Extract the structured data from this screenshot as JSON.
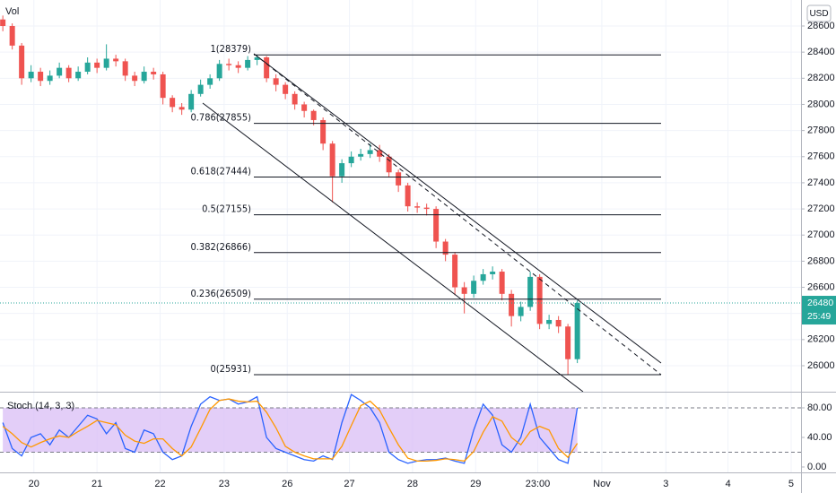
{
  "chart_data": {
    "type": "candlestick",
    "volume_label": "Vol",
    "currency": "USD",
    "x": [
      0,
      1,
      2,
      3,
      4,
      5,
      6,
      7,
      8,
      9,
      10,
      11,
      12,
      13,
      14,
      15,
      16,
      17,
      18,
      19,
      20,
      21,
      22,
      23,
      24,
      25,
      26,
      27,
      28,
      29,
      30,
      31,
      32,
      33,
      34,
      35,
      36,
      37,
      38,
      39,
      40,
      41,
      42,
      43,
      44,
      45,
      46,
      47,
      48,
      49,
      50,
      51,
      52,
      53,
      54,
      55,
      56,
      57,
      58,
      59,
      60,
      61
    ],
    "open": [
      28650,
      28600,
      28450,
      28200,
      28250,
      28180,
      28220,
      28280,
      28200,
      28250,
      28320,
      28280,
      28350,
      28330,
      28220,
      28180,
      28250,
      28230,
      28050,
      27980,
      27960,
      28080,
      28150,
      28200,
      28310,
      28300,
      28280,
      28340,
      28360,
      28200,
      28150,
      28080,
      28000,
      27950,
      27880,
      27700,
      27450,
      27550,
      27600,
      27620,
      27650,
      27600,
      27480,
      27380,
      27220,
      27210,
      27200,
      26950,
      26850,
      26600,
      26550,
      26650,
      26700,
      26720,
      26550,
      26380,
      26450,
      26680,
      26320,
      26350,
      26300,
      26050
    ],
    "high": [
      28680,
      28620,
      28470,
      28300,
      28280,
      28260,
      28320,
      28300,
      28290,
      28360,
      28350,
      28460,
      28380,
      28350,
      28250,
      28290,
      28280,
      28250,
      28070,
      28010,
      28110,
      28190,
      28230,
      28340,
      28350,
      28330,
      28370,
      28379,
      28370,
      28230,
      28170,
      28100,
      28020,
      27960,
      27900,
      27720,
      27580,
      27640,
      27660,
      27700,
      27690,
      27620,
      27500,
      27400,
      27250,
      27240,
      27220,
      26970,
      26870,
      26640,
      26690,
      26740,
      26760,
      26740,
      26580,
      26490,
      26720,
      26700,
      26390,
      26380,
      26320,
      26500
    ],
    "low": [
      28560,
      28420,
      28150,
      28170,
      28140,
      28150,
      28200,
      28170,
      28180,
      28230,
      28240,
      28260,
      28290,
      28180,
      28140,
      28160,
      28190,
      28000,
      27940,
      27920,
      27940,
      28060,
      28120,
      28180,
      28260,
      28240,
      28260,
      28300,
      28170,
      28100,
      28040,
      27960,
      27900,
      27840,
      27650,
      27250,
      27400,
      27520,
      27570,
      27590,
      27560,
      27440,
      27330,
      27180,
      27170,
      27150,
      26900,
      26800,
      26540,
      26400,
      26520,
      26620,
      26660,
      26500,
      26300,
      26340,
      26420,
      26280,
      26280,
      26250,
      25931,
      26020
    ],
    "close": [
      28600,
      28450,
      28200,
      28250,
      28180,
      28220,
      28280,
      28200,
      28250,
      28320,
      28280,
      28350,
      28330,
      28220,
      28180,
      28250,
      28230,
      28050,
      27980,
      27960,
      28080,
      28150,
      28200,
      28310,
      28300,
      28280,
      28340,
      28360,
      28200,
      28150,
      28080,
      28000,
      27950,
      27880,
      27700,
      27450,
      27550,
      27600,
      27620,
      27650,
      27600,
      27480,
      27380,
      27220,
      27210,
      27200,
      26950,
      26850,
      26600,
      26550,
      26650,
      26700,
      26720,
      26550,
      26380,
      26450,
      26680,
      26320,
      26350,
      26300,
      26050,
      26480
    ],
    "up_color": "#26a69a",
    "down_color": "#ef5350",
    "xlim": [
      -0.3,
      84.75
    ],
    "xticks": [
      {
        "value": 3.3,
        "label": "20"
      },
      {
        "value": 10,
        "label": "21"
      },
      {
        "value": 16.7,
        "label": "22"
      },
      {
        "value": 23.5,
        "label": "23"
      },
      {
        "value": 30.2,
        "label": "26"
      },
      {
        "value": 36.8,
        "label": "27"
      },
      {
        "value": 43.5,
        "label": "28"
      },
      {
        "value": 50.2,
        "label": "29"
      },
      {
        "value": 56.8,
        "label": "23:00"
      },
      {
        "value": 63.6,
        "label": "Nov"
      },
      {
        "value": 70.4,
        "label": "3"
      },
      {
        "value": 77,
        "label": "4"
      },
      {
        "value": 83.7,
        "label": "5"
      }
    ],
    "ylim": [
      25801,
      28799
    ],
    "yticks": [
      26000,
      26200,
      26400,
      26600,
      26800,
      27000,
      27200,
      27400,
      27600,
      27800,
      28000,
      28200,
      28400,
      28600
    ],
    "grid": true,
    "fib_levels": [
      {
        "label": "1(28379)",
        "value": 28379
      },
      {
        "label": "0.786(27855)",
        "value": 27855
      },
      {
        "label": "0.618(27444)",
        "value": 27444
      },
      {
        "label": "0.5(27155)",
        "value": 27155
      },
      {
        "label": "0.382(26866)",
        "value": 26866
      },
      {
        "label": "0.236(26509)",
        "value": 26509
      },
      {
        "label": "0(25931)",
        "value": 25931
      }
    ],
    "last_price": 26480,
    "countdown": "25:49",
    "indicator": {
      "type": "line",
      "title": "Stoch (14, 3, 3)",
      "series": [
        {
          "color": "#2962ff",
          "values": [
            60,
            25,
            15,
            40,
            45,
            30,
            50,
            40,
            55,
            70,
            65,
            45,
            60,
            25,
            20,
            50,
            45,
            20,
            10,
            15,
            55,
            85,
            95,
            90,
            92,
            85,
            88,
            95,
            40,
            25,
            20,
            15,
            10,
            8,
            15,
            10,
            60,
            98,
            90,
            80,
            60,
            20,
            10,
            5,
            8,
            10,
            10,
            12,
            8,
            5,
            50,
            85,
            70,
            30,
            20,
            40,
            85,
            40,
            25,
            10,
            5,
            80
          ]
        },
        {
          "color": "#ff9800",
          "values": [
            55,
            45,
            33,
            27,
            33,
            38,
            42,
            40,
            48,
            55,
            63,
            60,
            57,
            43,
            35,
            32,
            38,
            38,
            25,
            15,
            27,
            52,
            78,
            90,
            92,
            89,
            88,
            89,
            74,
            53,
            28,
            20,
            15,
            11,
            11,
            11,
            28,
            56,
            83,
            89,
            77,
            53,
            30,
            12,
            8,
            8,
            9,
            11,
            10,
            8,
            21,
            47,
            68,
            62,
            40,
            30,
            48,
            55,
            50,
            25,
            13,
            32
          ]
        }
      ],
      "ylim": [
        -7.3,
        100.6
      ],
      "yticks": [
        {
          "value": 0,
          "label": "0.00"
        },
        {
          "value": 40,
          "label": "40.00"
        },
        {
          "value": 80,
          "label": "80.00"
        }
      ],
      "band": [
        20,
        80
      ],
      "band_color": "#d9bdf5"
    }
  }
}
